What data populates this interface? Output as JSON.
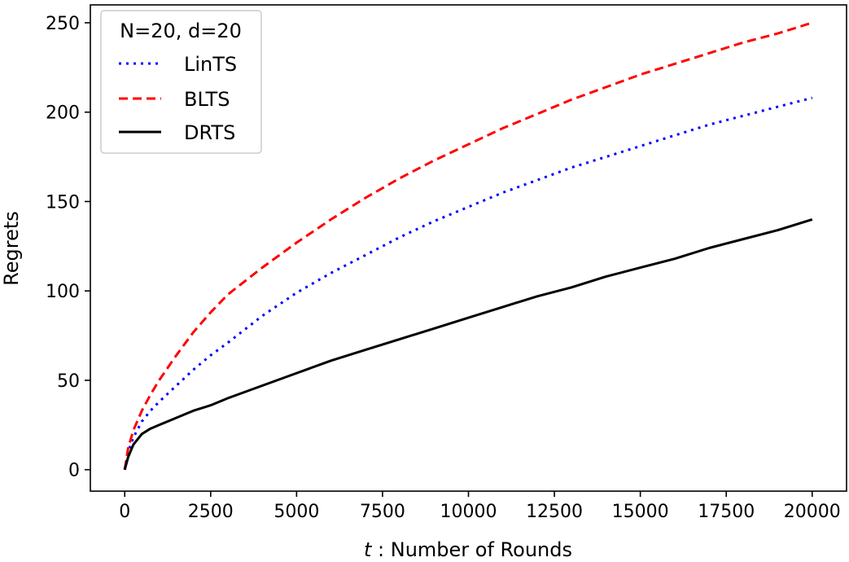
{
  "chart_data": {
    "type": "line",
    "xlabel_var": "t",
    "xlabel_rest": " : Number of Rounds",
    "ylabel": "Regrets",
    "xlim": [
      -1000,
      21000
    ],
    "ylim": [
      -12,
      260
    ],
    "xticks": [
      0,
      2500,
      5000,
      7500,
      10000,
      12500,
      15000,
      17500,
      20000
    ],
    "yticks": [
      0,
      50,
      100,
      150,
      200,
      250
    ],
    "grid": false,
    "legend": {
      "title": "N=20, d=20",
      "placement": "top-left"
    },
    "series": [
      {
        "name": "LinTS",
        "color": "#0000ff",
        "style": "dotted",
        "x": [
          0,
          100,
          250,
          500,
          750,
          1000,
          1500,
          2000,
          2500,
          3000,
          4000,
          5000,
          6000,
          7000,
          8000,
          9000,
          10000,
          11000,
          12000,
          13000,
          14000,
          15000,
          16000,
          17000,
          18000,
          19000,
          20000
        ],
        "y": [
          0,
          10,
          18,
          27,
          33,
          38,
          47,
          56,
          64,
          71,
          86,
          99,
          110,
          120,
          130,
          139,
          147,
          155,
          162,
          169,
          175,
          181,
          187,
          193,
          198,
          203,
          208
        ]
      },
      {
        "name": "BLTS",
        "color": "#ff0000",
        "style": "dashed",
        "x": [
          0,
          100,
          250,
          500,
          750,
          1000,
          1500,
          2000,
          2500,
          3000,
          4000,
          5000,
          6000,
          7000,
          8000,
          9000,
          10000,
          11000,
          12000,
          13000,
          14000,
          15000,
          16000,
          17000,
          18000,
          19000,
          20000
        ],
        "y": [
          0,
          12,
          22,
          33,
          42,
          50,
          64,
          77,
          88,
          98,
          113,
          127,
          140,
          152,
          163,
          173,
          182,
          191,
          199,
          207,
          214,
          221,
          227,
          233,
          239,
          244,
          250
        ]
      },
      {
        "name": "DRTS",
        "color": "#000000",
        "style": "solid",
        "x": [
          0,
          100,
          250,
          500,
          750,
          1000,
          1500,
          2000,
          2500,
          3000,
          4000,
          5000,
          6000,
          7000,
          8000,
          9000,
          10000,
          11000,
          12000,
          13000,
          14000,
          15000,
          16000,
          17000,
          18000,
          19000,
          20000
        ],
        "y": [
          0,
          7,
          14,
          20,
          23,
          25,
          29,
          33,
          36,
          40,
          47,
          54,
          61,
          67,
          73,
          79,
          85,
          91,
          97,
          102,
          108,
          113,
          118,
          124,
          129,
          134,
          140
        ]
      }
    ]
  }
}
